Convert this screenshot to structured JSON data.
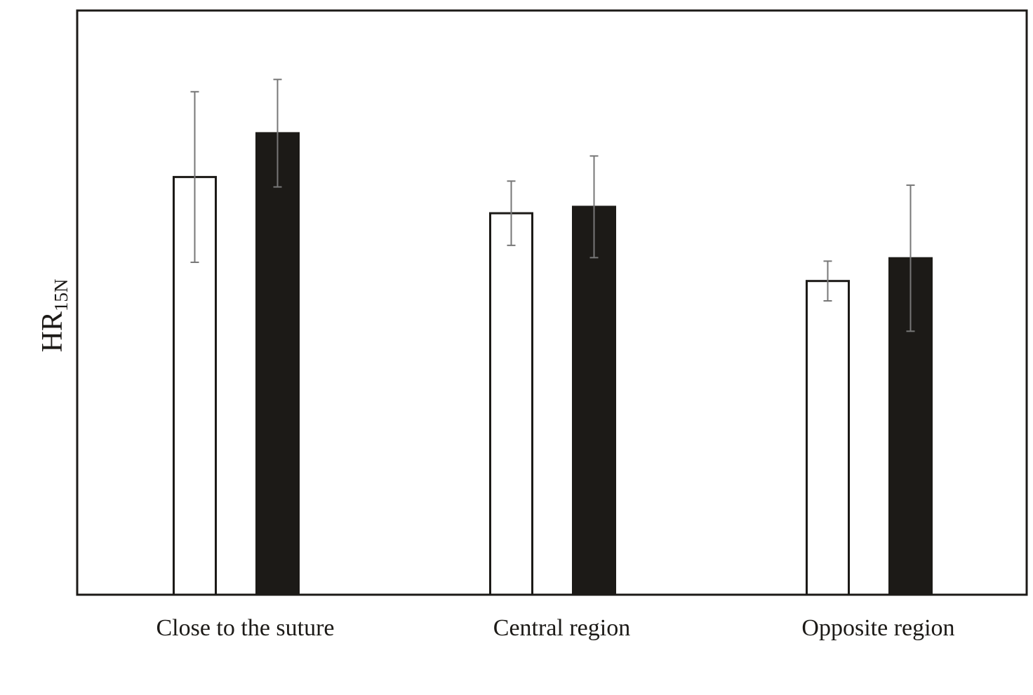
{
  "chart_data": {
    "type": "bar",
    "ylabel": "HR",
    "ylabel_subscript": "15N",
    "categories": [
      "Close to the suture",
      "Central region",
      "Opposite region"
    ],
    "series": [
      {
        "color": "#ffffff",
        "values": [
          71.5,
          65.3,
          53.7
        ],
        "errors": [
          14.6,
          5.5,
          3.4
        ]
      },
      {
        "color": "#1c1a17",
        "values": [
          79.0,
          66.4,
          57.6
        ],
        "errors": [
          9.2,
          8.7,
          12.5
        ]
      }
    ],
    "ylim": [
      0,
      100
    ]
  }
}
